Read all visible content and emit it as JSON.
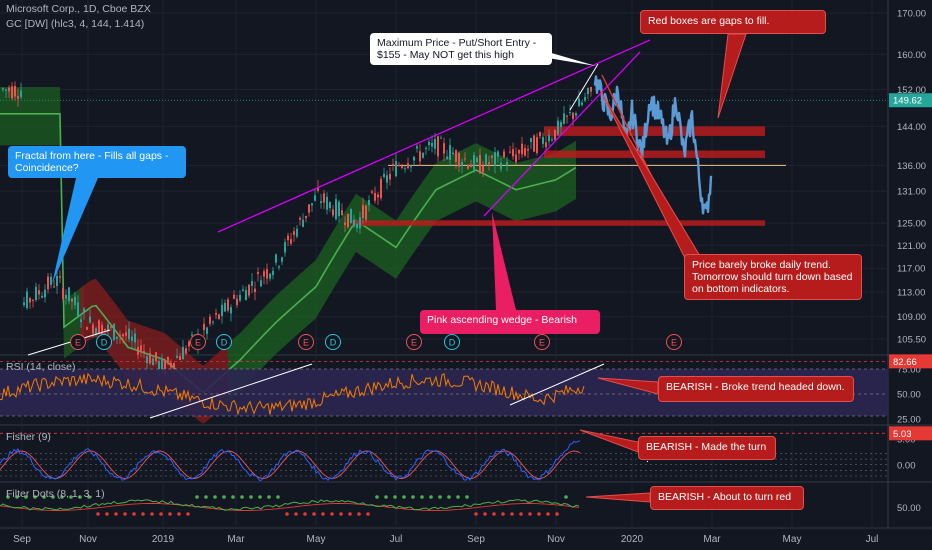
{
  "header": {
    "title": "Microsoft Corp., 1D, Cboe BZX",
    "indicator": "GC [DW] (hlc3, 4, 144, 1.414)"
  },
  "panes": {
    "rsi": {
      "label": "RSI (14, close)",
      "value_badge": "82.66"
    },
    "fisher": {
      "label": "Fisher (9)",
      "value_badge": "5.03"
    },
    "dots": {
      "label": "Filter Dots (8, 1, 3, 1)"
    }
  },
  "event_markers": [
    {
      "label": "E"
    },
    {
      "label": "D"
    },
    {
      "label": "E"
    },
    {
      "label": "D"
    },
    {
      "label": "E"
    },
    {
      "label": "D"
    },
    {
      "label": "E"
    },
    {
      "label": "D"
    },
    {
      "label": "E"
    },
    {
      "label": "E"
    }
  ],
  "annotations": {
    "max_price": "Maximum Price - Put/Short Entry - $155 - May NOT get this high",
    "gaps": "Red boxes are gaps to fill.",
    "fractal": "Fractal from here - Fills all gaps - Coincidence?",
    "wedge": "Pink ascending wedge - Bearish",
    "trend": "Price barely broke daily trend. Tomorrow should turn down based on bottom indicators.",
    "rsi": "BEARISH - Broke trend headed down.",
    "fisher": "BEARISH - Made the turn .",
    "dots": "BEARISH - About to turn red"
  },
  "colors": {
    "background": "#131722",
    "candle_up": "#26a69a",
    "candle_down": "#ef5350",
    "projection": "#5b9bd5",
    "wedge": "#d500f9",
    "gap_box": "#b71c1c",
    "band_green": "#1b5e20",
    "band_red": "#7f1d1d",
    "rsi": "#f57c00",
    "fisher": "#2962ff"
  },
  "chart_data": [
    {
      "type": "candlestick",
      "title": "Microsoft Corp., 1D, Cboe BZX",
      "x_ticks": [
        "Sep",
        "Nov",
        "2019",
        "Mar",
        "May",
        "Jul",
        "Sep",
        "Nov",
        "2020",
        "Mar",
        "May",
        "Jul"
      ],
      "y_ticks": [
        105.5,
        109.0,
        113.0,
        117.0,
        121.0,
        125.0,
        131.0,
        136.0,
        144.0,
        152.0,
        160.0,
        170.0
      ],
      "ylim": [
        103.5,
        172
      ],
      "y_scale": "log",
      "last_price": 149.62,
      "price_path": [
        [
          "Sep",
          111
        ],
        [
          "Oct",
          115
        ],
        [
          "Nov",
          108
        ],
        [
          "Dec",
          106
        ],
        [
          "2019",
          101
        ],
        [
          "Feb",
          106
        ],
        [
          "Mar",
          112
        ],
        [
          "Apr",
          118
        ],
        [
          "May",
          130
        ],
        [
          "Jun",
          125
        ],
        [
          "Jul",
          136
        ],
        [
          "Aug",
          140
        ],
        [
          "Sep",
          136
        ],
        [
          "Oct",
          138
        ],
        [
          "Nov",
          143
        ],
        [
          "Dec",
          152
        ]
      ],
      "projection_path": [
        [
          "Dec",
          155
        ],
        [
          "2020",
          140
        ],
        [
          "Jan",
          150
        ],
        [
          "Feb",
          138
        ],
        [
          "Feb",
          150
        ],
        [
          "Mar",
          126
        ],
        [
          "Mar",
          135
        ]
      ],
      "gap_boxes": [
        {
          "low": 142,
          "high": 144
        },
        {
          "low": 137.5,
          "high": 139
        },
        {
          "low": 124.5,
          "high": 125.5
        }
      ],
      "horizontal_level": 136.0,
      "wedge_upper": [
        [
          "Sep",
          160
        ],
        [
          "Mar",
          166
        ],
        [
          "Dec",
          170
        ]
      ],
      "wedge_lower": [
        [
          "Sep",
          131
        ],
        [
          "Dec",
          157
        ]
      ]
    },
    {
      "type": "line",
      "title": "RSI (14, close)",
      "y_ticks": [
        25.0,
        50.0,
        75.0
      ],
      "ylim": [
        20,
        88
      ],
      "last_value": 82.66
    },
    {
      "type": "line",
      "title": "Fisher (9)",
      "y_ticks": [
        0.0,
        5.0
      ],
      "last_value": 5.03
    },
    {
      "type": "scatter",
      "title": "Filter Dots (8, 1, 3, 1)",
      "y_ticks": [
        50.0
      ]
    }
  ]
}
